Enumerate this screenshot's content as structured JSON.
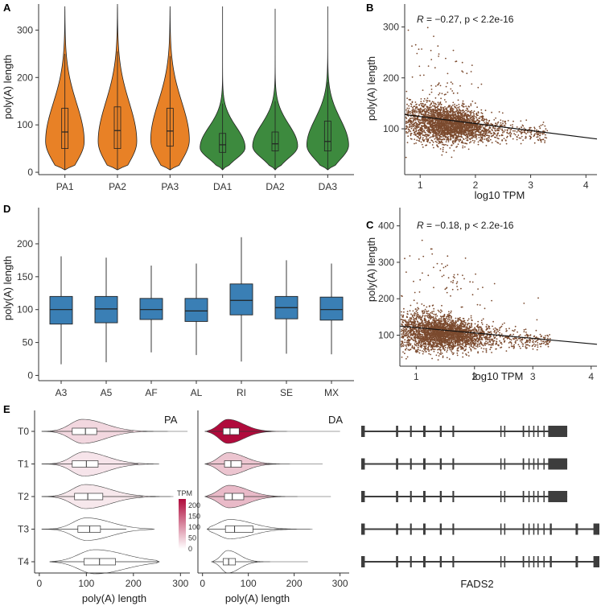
{
  "chart_data": [
    {
      "panel": "A",
      "type": "violin",
      "ylabel": "poly(A) length",
      "ylim": [
        -5,
        355
      ],
      "yticks": [
        0,
        100,
        200,
        300
      ],
      "categories": [
        "PA1",
        "PA2",
        "PA3",
        "DA1",
        "DA2",
        "DA3"
      ],
      "colors": [
        "#e88126",
        "#e88126",
        "#e88126",
        "#3d8a3e",
        "#3d8a3e",
        "#3d8a3e"
      ],
      "groups": [
        {
          "label": "PA1",
          "min": 5,
          "max": 350,
          "q1": 50,
          "median": 85,
          "q3": 135,
          "wlo": 5,
          "whi": 250,
          "mode": 65,
          "spread": 70,
          "hw": 24
        },
        {
          "label": "PA2",
          "min": 5,
          "max": 355,
          "q1": 50,
          "median": 88,
          "q3": 138,
          "wlo": 5,
          "whi": 255,
          "mode": 65,
          "spread": 72,
          "hw": 24
        },
        {
          "label": "PA3",
          "min": 5,
          "max": 350,
          "q1": 55,
          "median": 87,
          "q3": 135,
          "wlo": 5,
          "whi": 245,
          "mode": 68,
          "spread": 70,
          "hw": 24
        },
        {
          "label": "DA1",
          "min": 5,
          "max": 350,
          "q1": 42,
          "median": 58,
          "q3": 82,
          "wlo": 5,
          "whi": 145,
          "mode": 52,
          "spread": 38,
          "hw": 28
        },
        {
          "label": "DA2",
          "min": 5,
          "max": 345,
          "q1": 45,
          "median": 60,
          "q3": 85,
          "wlo": 5,
          "whi": 150,
          "mode": 55,
          "spread": 40,
          "hw": 28
        },
        {
          "label": "DA3",
          "min": 5,
          "max": 350,
          "q1": 45,
          "median": 65,
          "q3": 108,
          "wlo": 5,
          "whi": 190,
          "mode": 57,
          "spread": 48,
          "hw": 26
        }
      ]
    },
    {
      "panel": "B",
      "type": "scatter",
      "xlabel": "log10 TPM",
      "ylabel": "poly(A) length",
      "annotation": {
        "R": "R",
        "text": " = −0.27, p < 2.2e-16"
      },
      "xlim": [
        0.72,
        4.2
      ],
      "ylim": [
        10,
        345
      ],
      "xticks": [
        1,
        2,
        3,
        4
      ],
      "yticks": [
        100,
        200,
        300
      ],
      "point_color": "#7b4a2e",
      "cloud": {
        "x_center": 1.5,
        "x_spread": 0.7,
        "y_center": 115,
        "y_spread": 22
      },
      "n_points": 3000,
      "regression": {
        "x": [
          0.72,
          4.2
        ],
        "y": [
          128,
          80
        ]
      }
    },
    {
      "panel": "C",
      "type": "scatter",
      "xlabel": "log10 TPM",
      "ylabel": "poly(A) length",
      "annotation": {
        "R": "R",
        "text": " = −0.18, p < 2.2e-16"
      },
      "xlim": [
        0.72,
        4.1
      ],
      "ylim": [
        15,
        450
      ],
      "xticks": [
        1,
        2,
        3,
        4
      ],
      "yticks": [
        100,
        200,
        300,
        400
      ],
      "point_color": "#7b4a2e",
      "cloud": {
        "x_center": 1.45,
        "x_spread": 0.7,
        "y_center": 110,
        "y_spread": 28
      },
      "n_points": 3200,
      "regression": {
        "x": [
          0.72,
          4.1
        ],
        "y": [
          125,
          75
        ]
      }
    },
    {
      "panel": "D",
      "type": "box",
      "ylabel": "poly(A) length",
      "ylim": [
        -8,
        255
      ],
      "yticks": [
        0,
        50,
        100,
        150,
        200
      ],
      "color": "#3a7fb5",
      "categories": [
        "A3",
        "A5",
        "AF",
        "AL",
        "RI",
        "SE",
        "MX"
      ],
      "groups": [
        {
          "label": "A3",
          "wlo": 17,
          "q1": 78,
          "median": 100,
          "q3": 120,
          "whi": 181
        },
        {
          "label": "A5",
          "wlo": 20,
          "q1": 80,
          "median": 101,
          "q3": 120,
          "whi": 179
        },
        {
          "label": "AF",
          "wlo": 35,
          "q1": 85,
          "median": 100,
          "q3": 117,
          "whi": 167
        },
        {
          "label": "AL",
          "wlo": 31,
          "q1": 82,
          "median": 98,
          "q3": 117,
          "whi": 170
        },
        {
          "label": "RI",
          "wlo": 21,
          "q1": 92,
          "median": 114,
          "q3": 139,
          "whi": 210
        },
        {
          "label": "SE",
          "wlo": 33,
          "q1": 86,
          "median": 103,
          "q3": 120,
          "whi": 175
        },
        {
          "label": "MX",
          "wlo": 32,
          "q1": 84,
          "median": 100,
          "q3": 119,
          "whi": 170
        }
      ]
    },
    {
      "panel": "E",
      "type": "violin",
      "ylabel_rows": [
        "T0",
        "T1",
        "T2",
        "T3",
        "T4"
      ],
      "subplots": [
        {
          "title": "PA",
          "xlabel": "poly(A) length",
          "xlim": [
            -10,
            320
          ],
          "xticks": [
            0,
            100,
            200,
            300
          ],
          "rows": [
            {
              "label": "T0",
              "tpm": 38,
              "min": 5,
              "max": 315,
              "q1": 70,
              "median": 98,
              "q3": 122,
              "wlo": 5,
              "whi": 200,
              "mode": 92,
              "spread": 42,
              "hh": 15
            },
            {
              "label": "T1",
              "tpm": 25,
              "min": 5,
              "max": 255,
              "q1": 70,
              "median": 100,
              "q3": 125,
              "wlo": 5,
              "whi": 210,
              "mode": 95,
              "spread": 42,
              "hh": 15
            },
            {
              "label": "T2",
              "tpm": 22,
              "min": 5,
              "max": 285,
              "q1": 75,
              "median": 103,
              "q3": 135,
              "wlo": 5,
              "whi": 220,
              "mode": 98,
              "spread": 45,
              "hh": 15
            },
            {
              "label": "T3",
              "tpm": 0,
              "min": 5,
              "max": 245,
              "q1": 82,
              "median": 107,
              "q3": 130,
              "wlo": 5,
              "whi": 185,
              "mode": 100,
              "spread": 45,
              "hh": 14
            },
            {
              "label": "T4",
              "tpm": 0,
              "min": 22,
              "max": 255,
              "q1": 95,
              "median": 128,
              "q3": 162,
              "wlo": 22,
              "whi": 255,
              "mode": 118,
              "spread": 55,
              "hh": 15
            }
          ]
        },
        {
          "title": "DA",
          "xlabel": "poly(A) length",
          "xlim": [
            -10,
            320
          ],
          "xticks": [
            0,
            100,
            200,
            300
          ],
          "rows": [
            {
              "label": "T0",
              "tpm": 230,
              "min": 5,
              "max": 300,
              "q1": 45,
              "median": 60,
              "q3": 80,
              "wlo": 5,
              "whi": 150,
              "mode": 55,
              "spread": 30,
              "hh": 15
            },
            {
              "label": "T1",
              "tpm": 55,
              "min": 5,
              "max": 262,
              "q1": 48,
              "median": 62,
              "q3": 85,
              "wlo": 5,
              "whi": 160,
              "mode": 56,
              "spread": 32,
              "hh": 14
            },
            {
              "label": "T2",
              "tpm": 65,
              "min": 5,
              "max": 280,
              "q1": 48,
              "median": 65,
              "q3": 90,
              "wlo": 5,
              "whi": 170,
              "mode": 58,
              "spread": 35,
              "hh": 14
            },
            {
              "label": "T3",
              "tpm": 0,
              "min": 10,
              "max": 240,
              "q1": 50,
              "median": 70,
              "q3": 110,
              "wlo": 10,
              "whi": 190,
              "mode": 60,
              "spread": 42,
              "hh": 12
            },
            {
              "label": "T4",
              "tpm": 0,
              "min": 20,
              "max": 230,
              "q1": 45,
              "median": 57,
              "q3": 72,
              "wlo": 20,
              "whi": 120,
              "mode": 55,
              "spread": 22,
              "hh": 14
            }
          ]
        }
      ],
      "legend": {
        "title": "TPM",
        "ticks": [
          0,
          50,
          100,
          150,
          200
        ],
        "low_color": "#ffffff",
        "high_color": "#b00b3c",
        "max": 230
      },
      "gene_model": {
        "label": "FADS2",
        "color": "#3d3d3d",
        "transcripts": [
          {
            "row": "T0",
            "span": [
              0.0,
              0.865
            ],
            "exons": [
              [
                0.0,
                0.015
              ],
              [
                0.146,
                0.155
              ],
              [
                0.205,
                0.212
              ],
              [
                0.26,
                0.27
              ],
              [
                0.33,
                0.338
              ],
              [
                0.383,
                0.39
              ],
              [
                0.584,
                0.589
              ],
              [
                0.6,
                0.605
              ],
              [
                0.678,
                0.684
              ],
              [
                0.702,
                0.707
              ],
              [
                0.722,
                0.727
              ],
              [
                0.74,
                0.745
              ],
              [
                0.765,
                0.77
              ],
              [
                0.785,
                0.865
              ]
            ]
          },
          {
            "row": "T1",
            "span": [
              0.0,
              0.865
            ],
            "exons": [
              [
                0.0,
                0.015
              ],
              [
                0.146,
                0.155
              ],
              [
                0.205,
                0.212
              ],
              [
                0.26,
                0.27
              ],
              [
                0.33,
                0.338
              ],
              [
                0.383,
                0.39
              ],
              [
                0.584,
                0.589
              ],
              [
                0.6,
                0.605
              ],
              [
                0.678,
                0.684
              ],
              [
                0.702,
                0.707
              ],
              [
                0.722,
                0.727
              ],
              [
                0.74,
                0.745
              ],
              [
                0.765,
                0.77
              ],
              [
                0.785,
                0.865
              ]
            ]
          },
          {
            "row": "T2",
            "span": [
              0.0,
              0.865
            ],
            "exons": [
              [
                0.0,
                0.015
              ],
              [
                0.146,
                0.155
              ],
              [
                0.205,
                0.212
              ],
              [
                0.26,
                0.27
              ],
              [
                0.33,
                0.338
              ],
              [
                0.383,
                0.39
              ],
              [
                0.584,
                0.589
              ],
              [
                0.6,
                0.605
              ],
              [
                0.678,
                0.684
              ],
              [
                0.702,
                0.707
              ],
              [
                0.722,
                0.727
              ],
              [
                0.74,
                0.745
              ],
              [
                0.765,
                0.77
              ],
              [
                0.785,
                0.865
              ]
            ]
          },
          {
            "row": "T3",
            "span": [
              0.0,
              1.0
            ],
            "exons": [
              [
                0.0,
                0.015
              ],
              [
                0.146,
                0.155
              ],
              [
                0.205,
                0.212
              ],
              [
                0.26,
                0.27
              ],
              [
                0.33,
                0.338
              ],
              [
                0.383,
                0.39
              ],
              [
                0.584,
                0.589
              ],
              [
                0.6,
                0.605
              ],
              [
                0.678,
                0.684
              ],
              [
                0.702,
                0.707
              ],
              [
                0.722,
                0.727
              ],
              [
                0.74,
                0.745
              ],
              [
                0.765,
                0.77
              ],
              [
                0.792,
                0.8
              ],
              [
                0.9,
                0.91
              ],
              [
                0.975,
                1.0
              ]
            ]
          },
          {
            "row": "T4",
            "span": [
              0.0,
              1.0
            ],
            "exons": [
              [
                0.0,
                0.015
              ],
              [
                0.146,
                0.155
              ],
              [
                0.205,
                0.212
              ],
              [
                0.26,
                0.27
              ],
              [
                0.33,
                0.338
              ],
              [
                0.383,
                0.39
              ],
              [
                0.584,
                0.589
              ],
              [
                0.6,
                0.605
              ],
              [
                0.678,
                0.684
              ],
              [
                0.702,
                0.707
              ],
              [
                0.722,
                0.727
              ],
              [
                0.74,
                0.745
              ],
              [
                0.765,
                0.77
              ],
              [
                0.792,
                0.8
              ],
              [
                0.9,
                0.91
              ],
              [
                0.975,
                1.0
              ]
            ]
          }
        ]
      }
    }
  ],
  "panel_labels": {
    "A": "A",
    "B": "B",
    "C": "C",
    "D": "D",
    "E": "E"
  }
}
